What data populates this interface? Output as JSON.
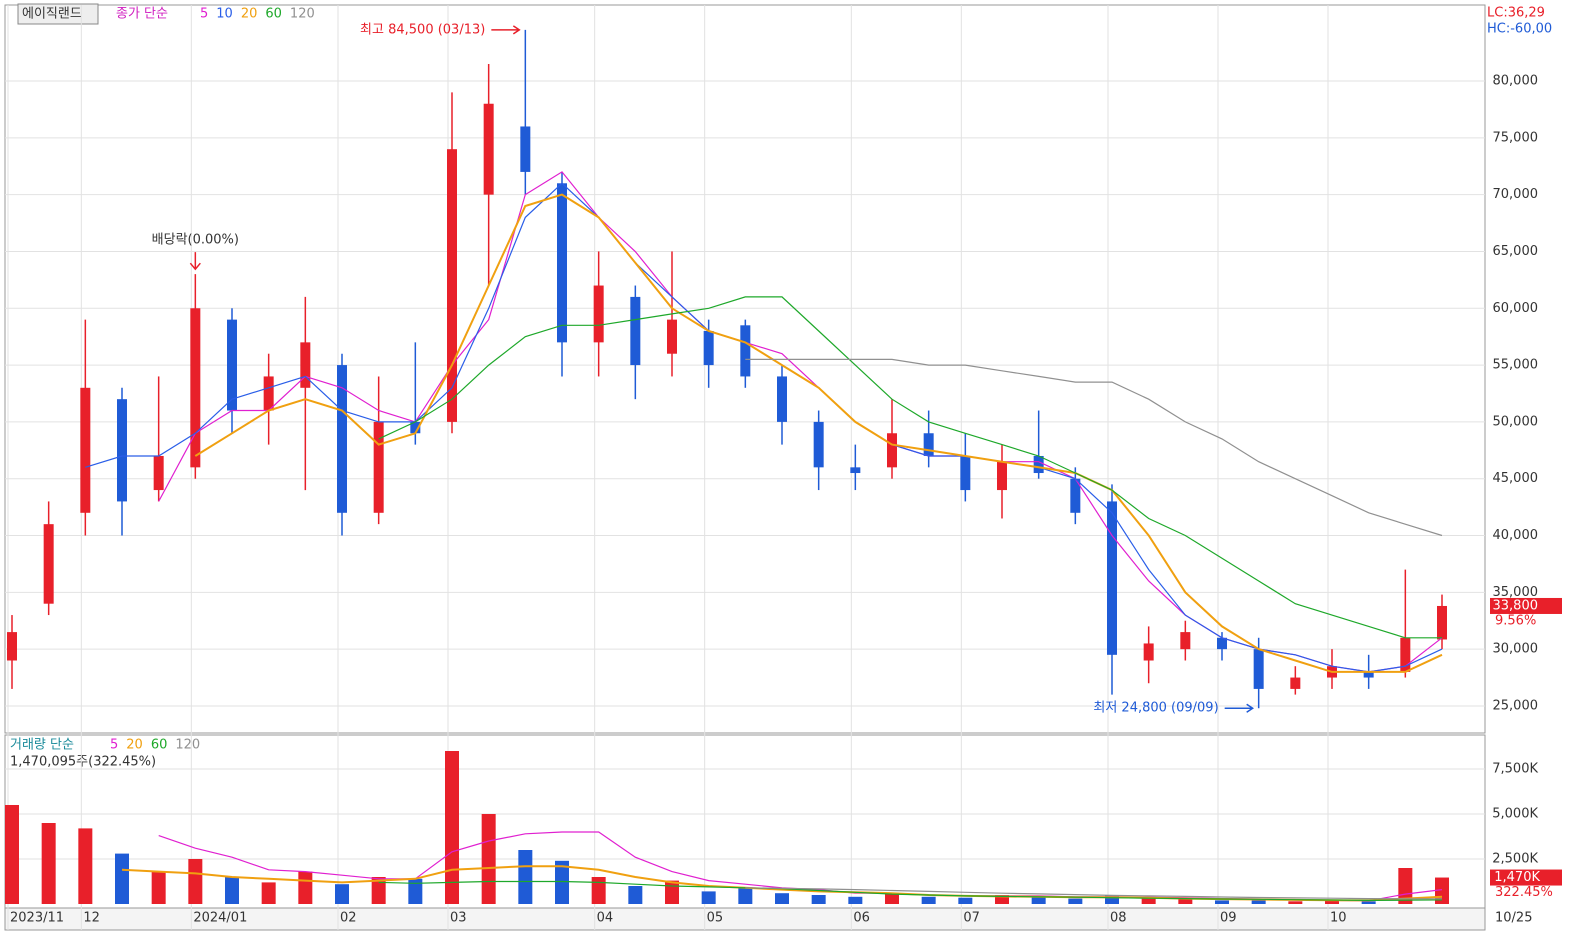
{
  "chart_data": [
    {
      "type": "candlestick",
      "header": "에이직랜드",
      "legend_title": "종가 단순",
      "categories": [
        "2023/11",
        null,
        "12",
        null,
        null,
        "2024/01",
        null,
        null,
        null,
        "02",
        null,
        null,
        "03",
        null,
        null,
        null,
        "04",
        null,
        null,
        "05",
        null,
        null,
        null,
        "06",
        null,
        null,
        "07",
        null,
        null,
        null,
        "08",
        null,
        null,
        "09",
        null,
        null,
        "10",
        null,
        null,
        null
      ],
      "open": [
        29000,
        34000,
        42000,
        52000,
        44000,
        46000,
        59000,
        51000,
        53000,
        55000,
        42000,
        50000,
        50000,
        70000,
        76000,
        71000,
        57000,
        61000,
        56000,
        58000,
        58500,
        54000,
        50000,
        46000,
        46000,
        49000,
        47000,
        44000,
        47000,
        45000,
        43000,
        29000,
        30000,
        31000,
        30000,
        26500,
        27500,
        28000,
        28000,
        30850
      ],
      "high": [
        33000,
        43000,
        59000,
        53000,
        54000,
        63000,
        60000,
        56000,
        61000,
        56000,
        54000,
        57000,
        79000,
        81500,
        84500,
        72000,
        65000,
        62000,
        65000,
        59000,
        59000,
        55000,
        51000,
        48000,
        52000,
        51000,
        49000,
        48000,
        51000,
        46000,
        44500,
        32000,
        32500,
        31500,
        31000,
        28500,
        30000,
        29500,
        37000,
        34800
      ],
      "low": [
        26500,
        33000,
        40000,
        40000,
        43000,
        45000,
        49000,
        48000,
        44000,
        40000,
        41000,
        48000,
        49000,
        62000,
        70000,
        54000,
        54000,
        52000,
        54000,
        53000,
        53000,
        48000,
        44000,
        44000,
        45000,
        46000,
        43000,
        41500,
        45000,
        41000,
        26000,
        27000,
        29000,
        29000,
        24800,
        26000,
        26500,
        26500,
        27500,
        30000
      ],
      "close": [
        31500,
        41000,
        53000,
        43000,
        47000,
        60000,
        51000,
        54000,
        57000,
        42000,
        50000,
        49000,
        74000,
        78000,
        72000,
        57000,
        62000,
        55000,
        59000,
        55000,
        54000,
        50000,
        46000,
        45500,
        49000,
        47000,
        44000,
        46500,
        45500,
        42000,
        29500,
        30500,
        31500,
        30000,
        26500,
        27500,
        28500,
        27500,
        31000,
        33800
      ],
      "up_color": "#e8202a",
      "down_color": "#1f5bd6",
      "series": [
        {
          "name": "5",
          "color": "#e020d0",
          "values": [
            null,
            null,
            null,
            null,
            43000,
            49000,
            51000,
            51000,
            54000,
            53000,
            51000,
            50000,
            55000,
            59000,
            70000,
            72000,
            68000,
            65000,
            61000,
            58000,
            57000,
            56000,
            53000,
            50000,
            48000,
            47000,
            47000,
            46500,
            46500,
            45000,
            40000,
            36000,
            33000,
            31000,
            30000,
            29500,
            28500,
            28000,
            28500,
            31000
          ]
        },
        {
          "name": "10",
          "color": "#2a5ee8",
          "values": [
            null,
            null,
            46000,
            47000,
            47000,
            49000,
            52000,
            53000,
            54000,
            51000,
            50000,
            50000,
            53000,
            60000,
            68000,
            71000,
            68000,
            64000,
            61000,
            58000,
            57000,
            55000,
            53000,
            50000,
            48000,
            47000,
            47000,
            46500,
            46000,
            45000,
            42000,
            37000,
            33000,
            31000,
            30000,
            29500,
            28500,
            28000,
            28500,
            30000
          ]
        },
        {
          "name": "20",
          "color": "#f0a010",
          "values": [
            null,
            null,
            null,
            null,
            null,
            47000,
            49000,
            51000,
            52000,
            51000,
            48000,
            49000,
            55000,
            62000,
            69000,
            70000,
            68000,
            64000,
            60000,
            58000,
            57000,
            55000,
            53000,
            50000,
            48000,
            47500,
            47000,
            46500,
            46000,
            45500,
            44000,
            40000,
            35000,
            32000,
            30000,
            29000,
            28000,
            28000,
            28000,
            29500
          ]
        },
        {
          "name": "60",
          "color": "#1ea82a",
          "values": [
            null,
            null,
            null,
            null,
            null,
            null,
            null,
            null,
            null,
            null,
            48500,
            50000,
            52000,
            55000,
            57500,
            58500,
            58500,
            59000,
            59500,
            60000,
            61000,
            61000,
            58000,
            55000,
            52000,
            50000,
            49000,
            48000,
            47000,
            45500,
            44000,
            41500,
            40000,
            38000,
            36000,
            34000,
            33000,
            32000,
            31000,
            31000
          ]
        },
        {
          "name": "120",
          "color": "#909090",
          "values": [
            null,
            null,
            null,
            null,
            null,
            null,
            null,
            null,
            null,
            null,
            null,
            null,
            null,
            null,
            null,
            null,
            null,
            null,
            null,
            null,
            55500,
            55500,
            55500,
            55500,
            55500,
            55000,
            55000,
            54500,
            54000,
            53500,
            53500,
            52000,
            50000,
            48500,
            46500,
            45000,
            43500,
            42000,
            41000,
            40000
          ]
        }
      ],
      "ylim": [
        22620,
        86690
      ],
      "yticks": [
        {
          "value": 25000,
          "label": "25,000"
        },
        {
          "value": 30000,
          "label": "30,000"
        },
        {
          "value": 35000,
          "label": "35,000"
        },
        {
          "value": 40000,
          "label": "40,000"
        },
        {
          "value": 45000,
          "label": "45,000"
        },
        {
          "value": 50000,
          "label": "50,000"
        },
        {
          "value": 55000,
          "label": "55,000"
        },
        {
          "value": 60000,
          "label": "60,000"
        },
        {
          "value": 65000,
          "label": "65,000"
        },
        {
          "value": 70000,
          "label": "70,000"
        },
        {
          "value": 75000,
          "label": "75,000"
        },
        {
          "value": 80000,
          "label": "80,000"
        }
      ],
      "grid": true,
      "lc_label": "LC:36,29",
      "hc_label": "HC:-60,00",
      "high_label": "최고 84,500 (03/13)",
      "low_label": "최저 24,800 (09/09)",
      "dividend_label": "배당락(0.00%)",
      "last_price": {
        "value": 33800,
        "label": "33,800"
      },
      "change_label": "9.56%",
      "end_date_label": "10/25"
    },
    {
      "type": "bar",
      "legend_title": "거래량 단순",
      "volume_label": "1,470,095주(322.45%)",
      "values": [
        5500000,
        4500000,
        4200000,
        2800000,
        1800000,
        2500000,
        1500000,
        1200000,
        1800000,
        1100000,
        1500000,
        1400000,
        8500000,
        5000000,
        3000000,
        2400000,
        1500000,
        1000000,
        1300000,
        700000,
        900000,
        600000,
        500000,
        400000,
        600000,
        400000,
        350000,
        500000,
        400000,
        300000,
        500000,
        300000,
        250000,
        200000,
        200000,
        150000,
        200000,
        150000,
        2000000,
        1470095
      ],
      "series": [
        {
          "name": "5",
          "color": "#e020d0",
          "values": [
            null,
            null,
            null,
            null,
            3800000,
            3100000,
            2600000,
            1900000,
            1800000,
            1600000,
            1400000,
            1400000,
            2900000,
            3500000,
            3900000,
            4000000,
            4000000,
            2600000,
            1800000,
            1300000,
            1100000,
            900000,
            800000,
            600000,
            600000,
            500000,
            450000,
            450000,
            450000,
            400000,
            400000,
            380000,
            350000,
            300000,
            280000,
            220000,
            200000,
            180000,
            550000,
            800000
          ]
        },
        {
          "name": "20",
          "color": "#f0a010",
          "values": [
            null,
            null,
            null,
            1900000,
            1800000,
            1700000,
            1500000,
            1400000,
            1300000,
            1200000,
            1300000,
            1400000,
            1900000,
            2000000,
            2100000,
            2100000,
            1900000,
            1500000,
            1200000,
            1000000,
            900000,
            800000,
            700000,
            650000,
            600000,
            500000,
            450000,
            420000,
            400000,
            380000,
            370000,
            350000,
            300000,
            270000,
            250000,
            230000,
            210000,
            200000,
            300000,
            400000
          ]
        },
        {
          "name": "60",
          "color": "#1ea82a",
          "values": [
            null,
            null,
            null,
            null,
            null,
            null,
            null,
            null,
            null,
            null,
            1200000,
            1150000,
            1200000,
            1250000,
            1250000,
            1250000,
            1200000,
            1100000,
            1000000,
            950000,
            900000,
            850000,
            750000,
            650000,
            550000,
            500000,
            450000,
            420000,
            400000,
            380000,
            350000,
            320000,
            300000,
            280000,
            260000,
            240000,
            220000,
            200000,
            210000,
            230000
          ]
        },
        {
          "name": "120",
          "color": "#909090",
          "values": [
            null,
            null,
            null,
            null,
            null,
            null,
            null,
            null,
            null,
            null,
            null,
            null,
            null,
            null,
            null,
            null,
            null,
            null,
            null,
            null,
            900000,
            870000,
            840000,
            800000,
            750000,
            700000,
            650000,
            600000,
            560000,
            520000,
            480000,
            450000,
            420000,
            390000,
            360000,
            340000,
            320000,
            300000,
            290000,
            290000
          ]
        }
      ],
      "ylim": [
        0,
        9111000
      ],
      "yticks": [
        {
          "value": 2500000,
          "label": "2,500K"
        },
        {
          "value": 5000000,
          "label": "5,000K"
        },
        {
          "value": 7500000,
          "label": "7,500K"
        }
      ],
      "last_value": {
        "value": 1470000,
        "label": "1,470K"
      },
      "ratio_label": "322.45%"
    }
  ]
}
